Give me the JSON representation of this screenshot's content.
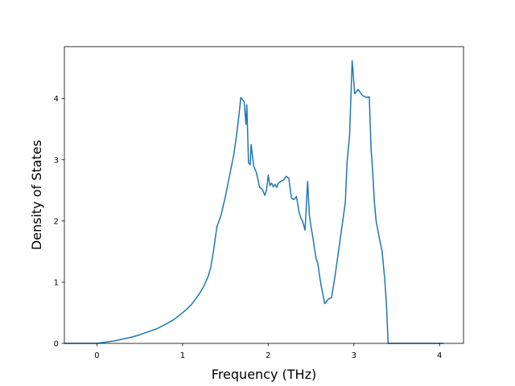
{
  "chart_data": {
    "type": "line",
    "title": "",
    "xlabel": "Frequency (THz)",
    "ylabel": "Density of States",
    "xlim": [
      -0.38,
      4.28
    ],
    "ylim": [
      0,
      4.85
    ],
    "xticks": [
      0,
      1,
      2,
      3,
      4
    ],
    "yticks": [
      0,
      1,
      2,
      3,
      4
    ],
    "grid": false,
    "series": [
      {
        "color": "#1f77b4",
        "x": [
          -0.38,
          -0.2,
          0,
          0.1,
          0.2,
          0.3,
          0.4,
          0.5,
          0.6,
          0.7,
          0.8,
          0.9,
          1.0,
          1.05,
          1.1,
          1.15,
          1.2,
          1.25,
          1.3,
          1.33,
          1.36,
          1.4,
          1.45,
          1.5,
          1.55,
          1.6,
          1.63,
          1.66,
          1.68,
          1.7,
          1.72,
          1.74,
          1.75,
          1.77,
          1.79,
          1.8,
          1.83,
          1.86,
          1.9,
          1.93,
          1.96,
          1.98,
          2.0,
          2.02,
          2.04,
          2.06,
          2.08,
          2.1,
          2.12,
          2.15,
          2.18,
          2.21,
          2.24,
          2.27,
          2.3,
          2.33,
          2.36,
          2.38,
          2.4,
          2.43,
          2.46,
          2.48,
          2.5,
          2.52,
          2.54,
          2.56,
          2.58,
          2.6,
          2.62,
          2.66,
          2.7,
          2.74,
          2.78,
          2.82,
          2.86,
          2.9,
          2.92,
          2.95,
          2.98,
          3.01,
          3.05,
          3.1,
          3.15,
          3.18,
          3.2,
          3.22,
          3.24,
          3.26,
          3.28,
          3.3,
          3.33,
          3.36,
          3.38,
          3.4,
          3.43,
          3.46,
          3.5,
          3.54,
          3.58,
          3.62,
          3.66,
          3.68,
          3.7,
          3.75,
          3.8,
          3.85,
          3.9,
          3.95,
          4.0,
          4.05
        ],
        "y": [
          0,
          0,
          0,
          0.02,
          0.04,
          0.07,
          0.1,
          0.14,
          0.19,
          0.24,
          0.31,
          0.39,
          0.5,
          0.56,
          0.63,
          0.72,
          0.82,
          0.94,
          1.1,
          1.25,
          1.5,
          1.9,
          2.1,
          2.4,
          2.75,
          3.1,
          3.4,
          3.75,
          4.02,
          3.98,
          3.95,
          3.58,
          3.9,
          2.95,
          2.92,
          3.25,
          2.9,
          2.8,
          2.55,
          2.52,
          2.42,
          2.5,
          2.75,
          2.58,
          2.62,
          2.56,
          2.6,
          2.55,
          2.62,
          2.65,
          2.67,
          2.73,
          2.7,
          2.38,
          2.35,
          2.4,
          2.15,
          2.05,
          2.0,
          1.85,
          2.65,
          2.1,
          1.9,
          1.75,
          1.55,
          1.38,
          1.3,
          1.1,
          0.93,
          0.65,
          0.72,
          0.75,
          1.1,
          1.5,
          1.9,
          2.3,
          2.95,
          3.4,
          4.62,
          4.08,
          4.15,
          4.05,
          4.02,
          4.03,
          3.2,
          2.8,
          2.3,
          2.0,
          1.85,
          1.7,
          1.5,
          1.05,
          0.65,
          0,
          0,
          0,
          0,
          0,
          0,
          0,
          0,
          0,
          0,
          0,
          0,
          0,
          0,
          0,
          0,
          0
        ]
      }
    ]
  }
}
